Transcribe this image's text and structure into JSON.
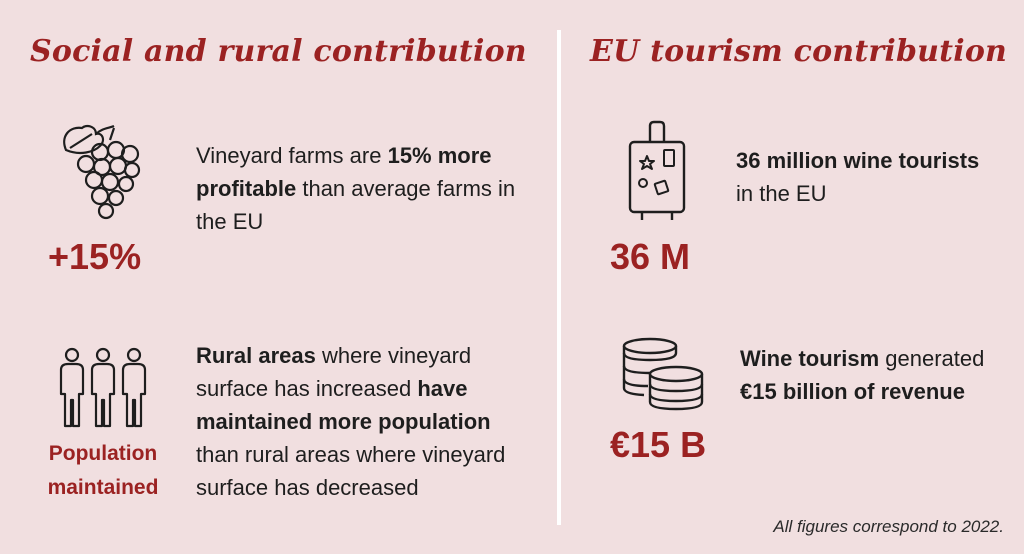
{
  "left": {
    "title": "Social and rural contribution",
    "item1": {
      "value": "+15%",
      "icon": "grapes-icon",
      "text": {
        "p1": "Vineyard farms are ",
        "b1": "15% more profitable",
        "p2": " than average farms in the EU"
      }
    },
    "item2": {
      "caption_line1": "Population",
      "caption_line2": "maintained",
      "icon": "people-icon",
      "text": {
        "b1": "Rural areas",
        "p1": " where vineyard surface has increased ",
        "b2": "have maintained more population",
        "p2": " than rural areas where vineyard surface has decreased"
      }
    }
  },
  "right": {
    "title": "EU tourism contribution",
    "item1": {
      "value": "36 M",
      "icon": "suitcase-icon",
      "text": {
        "b1": "36 million wine tourists",
        "p1": " in the EU"
      }
    },
    "item2": {
      "value": "€15 B",
      "icon": "coins-icon",
      "text": {
        "b1": "Wine tourism",
        "p1": " generated ",
        "b2": "€15 billion of revenue"
      }
    }
  },
  "footnote": "All figures correspond to 2022.",
  "colors": {
    "background": "#f1dfe0",
    "accent": "#9b2222",
    "text": "#1e1e1e",
    "divider": "#ffffff"
  }
}
